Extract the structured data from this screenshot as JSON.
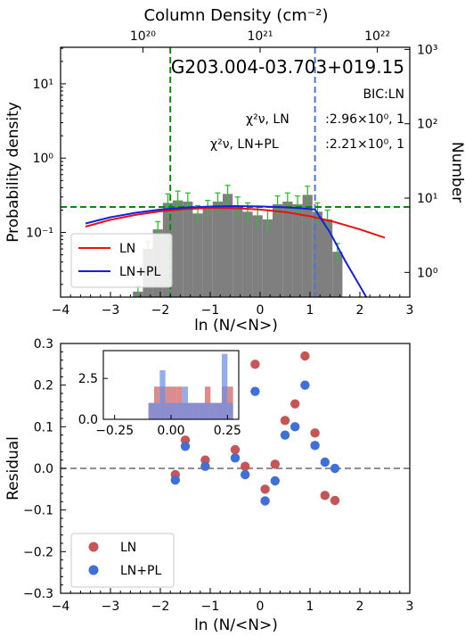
{
  "chart_data": [
    {
      "type": "bar",
      "title": "G203.004-03.703+019.15",
      "annotations": {
        "bic": "BIC:LN",
        "chi_ln_label": "χ²ν, LN",
        "chi_ln_value": ":2.96×10⁰, 1",
        "chi_lnpl_label": "χ²ν, LN+PL",
        "chi_lnpl_value": ":2.21×10⁰, 1"
      },
      "xlabel": "ln (N/<N>)",
      "ylabel": "Probability density",
      "y2label": "Number",
      "top_xlabel": "Column Density (cm⁻²)",
      "xlim": [
        -4,
        3
      ],
      "ylim": [
        0.0135,
        31
      ],
      "yscale": "log",
      "xticks": [
        -4,
        -3,
        -2,
        -1,
        0,
        1,
        2,
        3
      ],
      "yticks": [
        {
          "v": 0.1,
          "label": "10⁻¹"
        },
        {
          "v": 1,
          "label": "10⁰"
        },
        {
          "v": 10,
          "label": "10¹"
        }
      ],
      "top_ticks": [
        {
          "x": -2.35,
          "label": "10²⁰"
        },
        {
          "x": 0.0,
          "label": "10²¹"
        },
        {
          "x": 2.35,
          "label": "10²²"
        }
      ],
      "right_ticks": [
        {
          "v": 0.029,
          "label": "10⁰"
        },
        {
          "v": 0.29,
          "label": "10¹"
        },
        {
          "v": 2.9,
          "label": "10²"
        },
        {
          "v": 29,
          "label": "10³"
        }
      ],
      "histogram": {
        "edges": [
          -2.55,
          -2.35,
          -2.15,
          -1.95,
          -1.75,
          -1.55,
          -1.35,
          -1.15,
          -0.95,
          -0.75,
          -0.55,
          -0.35,
          -0.15,
          0.05,
          0.25,
          0.45,
          0.65,
          0.85,
          1.05,
          1.25,
          1.45,
          1.65
        ],
        "values": [
          0.016,
          0.06,
          0.11,
          0.25,
          0.27,
          0.26,
          0.18,
          0.21,
          0.26,
          0.33,
          0.23,
          0.19,
          0.17,
          0.15,
          0.24,
          0.26,
          0.24,
          0.32,
          0.19,
          0.15,
          0.055
        ],
        "errors": [
          0.003,
          0.015,
          0.03,
          0.08,
          0.09,
          0.08,
          0.05,
          0.06,
          0.08,
          0.1,
          0.07,
          0.06,
          0.05,
          0.05,
          0.07,
          0.08,
          0.07,
          0.1,
          0.06,
          0.05,
          0.016
        ]
      },
      "series": [
        {
          "name": "LN",
          "color": "#e8120e",
          "x": [
            -3.5,
            -3.0,
            -2.5,
            -2.0,
            -1.5,
            -1.0,
            -0.5,
            0.0,
            0.5,
            1.0,
            1.5,
            2.0,
            2.5
          ],
          "y": [
            0.12,
            0.148,
            0.172,
            0.192,
            0.206,
            0.214,
            0.212,
            0.203,
            0.188,
            0.165,
            0.138,
            0.11,
            0.085
          ]
        },
        {
          "name": "LN+PL",
          "color": "#1520e0",
          "x": [
            -3.5,
            -3.0,
            -2.5,
            -2.0,
            -1.5,
            -1.0,
            -0.5,
            0.0,
            0.5,
            0.8,
            1.1,
            1.4,
            1.7,
            2.0,
            2.3
          ],
          "y": [
            0.132,
            0.16,
            0.184,
            0.203,
            0.216,
            0.223,
            0.226,
            0.224,
            0.218,
            0.212,
            0.204,
            0.1,
            0.042,
            0.019,
            0.0085
          ]
        }
      ],
      "vlines": [
        {
          "x": -1.8,
          "color": "#0a8a0a"
        },
        {
          "x": 1.1,
          "color": "#4a74e0"
        }
      ],
      "hline": {
        "y": 0.22,
        "color": "#0a8a0a"
      },
      "legend": {
        "placement": "lower-left",
        "entries": [
          "LN",
          "LN+PL"
        ]
      }
    },
    {
      "type": "scatter",
      "xlabel": "ln (N/<N>)",
      "ylabel": "Residual",
      "xlim": [
        -4,
        3
      ],
      "ylim": [
        -0.3,
        0.3
      ],
      "xticks": [
        -4,
        -3,
        -2,
        -1,
        0,
        1,
        2,
        3
      ],
      "yticks": [
        -0.3,
        -0.2,
        -0.1,
        0.0,
        0.1,
        0.2,
        0.3
      ],
      "series": [
        {
          "name": "LN",
          "color": "#c85555",
          "x": [
            -1.7,
            -1.5,
            -1.1,
            -0.7,
            -0.5,
            -0.3,
            -0.1,
            0.1,
            0.3,
            0.5,
            0.7,
            0.9,
            1.1,
            1.3,
            1.5
          ],
          "y": [
            -0.015,
            0.068,
            0.02,
            0.255,
            0.045,
            0.005,
            0.25,
            -0.05,
            0.01,
            0.115,
            0.155,
            0.27,
            0.085,
            -0.065,
            -0.077
          ]
        },
        {
          "name": "LN+PL",
          "color": "#3f6fd8",
          "x": [
            -1.7,
            -1.5,
            -1.1,
            -0.7,
            -0.5,
            -0.3,
            -0.1,
            0.1,
            0.3,
            0.5,
            0.7,
            0.9,
            1.1,
            1.3,
            1.5
          ],
          "y": [
            -0.028,
            0.053,
            0.005,
            0.205,
            0.025,
            -0.015,
            0.185,
            -0.078,
            -0.03,
            0.08,
            0.1,
            0.2,
            0.055,
            0.015,
            0.0
          ]
        }
      ],
      "hline": {
        "y": 0.0,
        "color": "#808080"
      },
      "legend": {
        "placement": "lower-left",
        "entries": [
          "LN",
          "LN+PL"
        ]
      },
      "inset": {
        "type": "histogram",
        "xlim": [
          -0.3,
          0.3
        ],
        "ylim": [
          0,
          4.2
        ],
        "xticks": [
          -0.25,
          0.0,
          0.25
        ],
        "xtick_labels": [
          "−0.25",
          "0.00",
          "0.25"
        ],
        "yticks": [
          0.0,
          2.5
        ],
        "ytick_labels": [
          "0.0",
          "2.5"
        ],
        "edges": [
          -0.1,
          -0.075,
          -0.05,
          -0.025,
          0.0,
          0.025,
          0.05,
          0.075,
          0.1,
          0.125,
          0.15,
          0.175,
          0.2,
          0.225,
          0.25,
          0.275
        ],
        "series": [
          {
            "name": "LN",
            "color": "#d06060",
            "values": [
              1,
              2,
              2,
              2,
              2,
              2,
              1,
              1,
              1,
              1,
              2,
              1,
              1,
              2,
              2
            ]
          },
          {
            "name": "LN+PL",
            "color": "#6a8ee8",
            "values": [
              1,
              1,
              3,
              1,
              1,
              1,
              2,
              1,
              1,
              1,
              1,
              1,
              1,
              4,
              1
            ]
          }
        ]
      }
    }
  ]
}
